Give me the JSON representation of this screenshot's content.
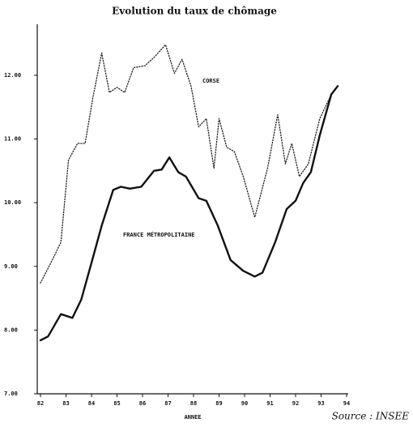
{
  "chart_data": {
    "type": "line",
    "title": "Evolution du taux de chômage",
    "xlabel": "ANNEE",
    "source": "Source : INSEE",
    "xlim": [
      82,
      94
    ],
    "xticks": [
      82,
      83,
      84,
      85,
      86,
      87,
      88,
      89,
      90,
      91,
      92,
      93,
      94
    ],
    "ylim": [
      7,
      12.8
    ],
    "yticks": [
      {
        "value": 7,
        "label": "7.00"
      },
      {
        "value": 8,
        "label": "8.00"
      },
      {
        "value": 9,
        "label": "9.00"
      },
      {
        "value": 10,
        "label": "10.00"
      },
      {
        "value": 11,
        "label": "11.00"
      },
      {
        "value": 12,
        "label": "12.00"
      }
    ],
    "series": [
      {
        "name": "CORSE",
        "color": "#222222",
        "style": "dotted",
        "x": [
          82.0,
          82.5,
          82.8,
          83.1,
          83.45,
          83.75,
          84.05,
          84.4,
          84.7,
          85.0,
          85.3,
          85.65,
          86.1,
          86.45,
          86.9,
          87.25,
          87.55,
          87.9,
          88.2,
          88.5,
          88.8,
          89.0,
          89.3,
          89.6,
          89.95,
          90.4,
          90.9,
          91.3,
          91.6,
          91.85,
          92.15,
          92.5,
          92.95,
          93.4,
          93.65
        ],
        "values": [
          8.74,
          9.13,
          9.38,
          10.67,
          10.93,
          10.93,
          11.64,
          12.35,
          11.73,
          11.81,
          11.73,
          12.12,
          12.15,
          12.28,
          12.48,
          12.03,
          12.25,
          11.83,
          11.19,
          11.32,
          10.54,
          11.32,
          10.87,
          10.8,
          10.41,
          9.77,
          10.54,
          11.38,
          10.61,
          10.93,
          10.41,
          10.61,
          11.32,
          11.7,
          11.83
        ]
      },
      {
        "name": "FRANCE MÉTROPOLITAINE",
        "color": "#111111",
        "style": "solid",
        "x": [
          82.0,
          82.3,
          82.8,
          83.25,
          83.6,
          84.05,
          84.4,
          84.85,
          85.15,
          85.5,
          85.95,
          86.45,
          86.75,
          87.05,
          87.4,
          87.7,
          88.2,
          88.5,
          88.95,
          89.45,
          89.95,
          90.4,
          90.7,
          91.2,
          91.65,
          92.0,
          92.3,
          92.6,
          92.95,
          93.4,
          93.65
        ],
        "values": [
          7.84,
          7.9,
          8.25,
          8.19,
          8.48,
          9.13,
          9.64,
          10.2,
          10.25,
          10.22,
          10.25,
          10.5,
          10.52,
          10.71,
          10.48,
          10.41,
          10.07,
          10.03,
          9.64,
          9.1,
          8.93,
          8.84,
          8.9,
          9.38,
          9.9,
          10.03,
          10.31,
          10.48,
          11.06,
          11.7,
          11.83
        ]
      }
    ]
  }
}
